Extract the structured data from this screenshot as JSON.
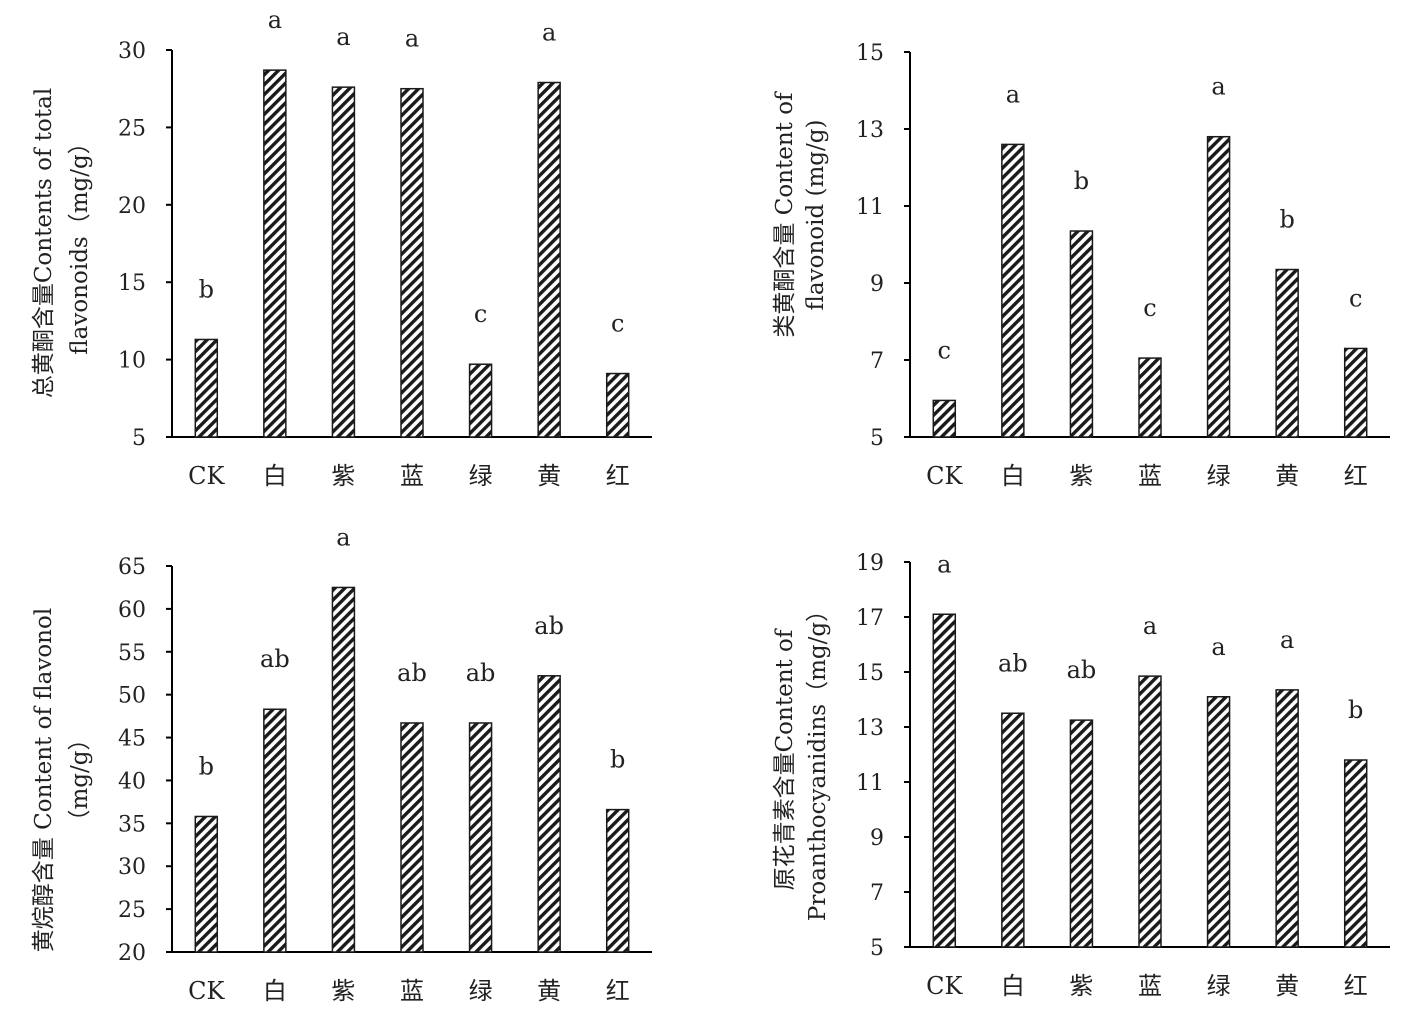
{
  "hatch_color": "#1a1a1a",
  "axis_color": "#000000",
  "chart_data": [
    {
      "type": "bar",
      "categories": [
        "CK",
        "白",
        "紫",
        "蓝",
        "绿",
        "黄",
        "红"
      ],
      "values": [
        11.3,
        28.7,
        27.6,
        27.5,
        9.7,
        27.9,
        9.1
      ],
      "sig_labels": [
        "b",
        "a",
        "a",
        "a",
        "c",
        "a",
        "c"
      ],
      "ylim": [
        5,
        30
      ],
      "yticks": [
        5,
        10,
        15,
        20,
        25,
        30
      ],
      "ylabel_lines": [
        "总黄酮含量Contents of total",
        "flavonoids（mg/g）"
      ],
      "xlabel": "",
      "grid": false
    },
    {
      "type": "bar",
      "categories": [
        "CK",
        "白",
        "紫",
        "蓝",
        "绿",
        "黄",
        "红"
      ],
      "values": [
        5.95,
        12.6,
        10.35,
        7.05,
        12.8,
        9.35,
        7.3
      ],
      "sig_labels": [
        "c",
        "a",
        "b",
        "c",
        "a",
        "b",
        "c"
      ],
      "ylim": [
        5,
        15
      ],
      "yticks": [
        5,
        7,
        9,
        11,
        13,
        15
      ],
      "ylabel_lines": [
        "类黄酮含量 Content of",
        "flavonoid (mg/g)"
      ],
      "xlabel": "",
      "grid": false
    },
    {
      "type": "bar",
      "categories": [
        "CK",
        "白",
        "紫",
        "蓝",
        "绿",
        "黄",
        "红"
      ],
      "values": [
        35.8,
        48.3,
        62.5,
        46.7,
        46.7,
        52.2,
        36.6
      ],
      "sig_labels": [
        "b",
        "ab",
        "a",
        "ab",
        "ab",
        "ab",
        "b"
      ],
      "ylim": [
        20,
        65
      ],
      "yticks": [
        20,
        25,
        30,
        35,
        40,
        45,
        50,
        55,
        60,
        65
      ],
      "ylabel_lines": [
        "黄烷醇含量 Content of flavonol",
        "（mg/g）"
      ],
      "xlabel": "",
      "grid": false
    },
    {
      "type": "bar",
      "categories": [
        "CK",
        "白",
        "紫",
        "蓝",
        "绿",
        "黄",
        "红"
      ],
      "values": [
        17.1,
        13.5,
        13.25,
        14.85,
        14.1,
        14.35,
        11.8
      ],
      "sig_labels": [
        "a",
        "ab",
        "ab",
        "a",
        "a",
        "a",
        "b"
      ],
      "ylim": [
        5,
        19
      ],
      "yticks": [
        5,
        7,
        9,
        11,
        13,
        15,
        17,
        19
      ],
      "ylabel_lines": [
        "原花青素含量Content of",
        "Proanthocyanidins（mg/g）"
      ],
      "xlabel": "",
      "grid": false
    }
  ]
}
